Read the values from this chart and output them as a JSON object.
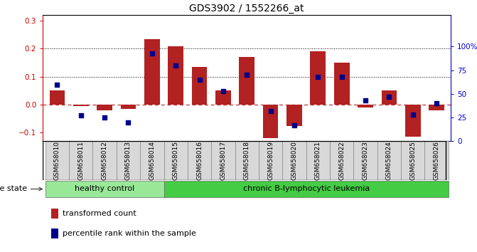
{
  "title": "GDS3902 / 1552266_at",
  "samples": [
    "GSM658010",
    "GSM658011",
    "GSM658012",
    "GSM658013",
    "GSM658014",
    "GSM658015",
    "GSM658016",
    "GSM658017",
    "GSM658018",
    "GSM658019",
    "GSM658020",
    "GSM658021",
    "GSM658022",
    "GSM658023",
    "GSM658024",
    "GSM658025",
    "GSM658026"
  ],
  "transformed_count": [
    0.05,
    -0.005,
    -0.02,
    -0.015,
    0.235,
    0.21,
    0.135,
    0.05,
    0.17,
    -0.12,
    -0.075,
    0.19,
    0.15,
    -0.01,
    0.05,
    -0.115,
    -0.02
  ],
  "percentile_rank": [
    60,
    27,
    25,
    20,
    93,
    80,
    65,
    53,
    70,
    32,
    17,
    68,
    68,
    43,
    47,
    28,
    40
  ],
  "bar_color": "#b22222",
  "dot_color": "#00008b",
  "zero_line_color": "#b22222",
  "ylim_left": [
    -0.13,
    0.32
  ],
  "ylim_right": [
    0,
    133.33
  ],
  "yticks_left": [
    -0.1,
    0.0,
    0.1,
    0.2,
    0.3
  ],
  "yticks_right": [
    0,
    25,
    50,
    75,
    100
  ],
  "ylabel_left_color": "#cc0000",
  "ylabel_right_color": "#0000cc",
  "healthy_color": "#98e898",
  "leukemia_color": "#44cc44",
  "disease_label_healthy": "healthy control",
  "disease_label_leukemia": "chronic B-lymphocytic leukemia",
  "disease_state_label": "disease state",
  "legend_bar_label": "transformed count",
  "legend_dot_label": "percentile rank within the sample",
  "bg_color": "#ffffff",
  "sample_bg_color": "#d8d8d8",
  "n_healthy": 5,
  "n_leukemia": 12
}
